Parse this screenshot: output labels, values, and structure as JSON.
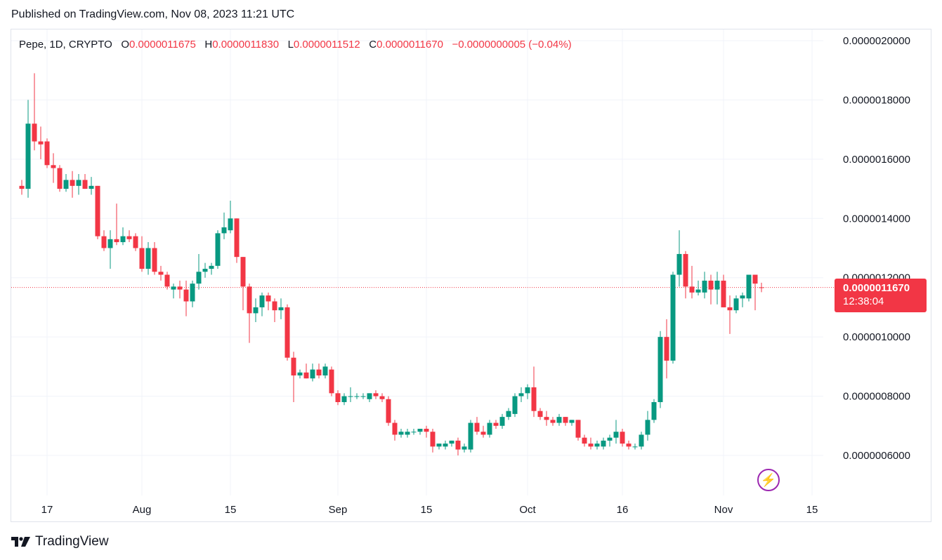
{
  "header": {
    "published": "Published on TradingView.com, Nov 08, 2023 11:21 UTC"
  },
  "legend": {
    "symbol": "Pepe, 1D, CRYPTO",
    "open_label": "O",
    "open": "0.0000011675",
    "high_label": "H",
    "high": "0.0000011830",
    "low_label": "L",
    "low": "0.0000011512",
    "close_label": "C",
    "close": "0.0000011670",
    "change": "−0.0000000005 (−0.04%)"
  },
  "price_tag": {
    "price": "0.0000011670",
    "countdown": "12:38:04"
  },
  "brand": {
    "name": "TradingView"
  },
  "colors": {
    "up": "#089981",
    "down": "#f23645",
    "grid": "#f0f3fa",
    "accent": "#9c27b0"
  },
  "icons": {
    "bolt": "lightning-icon",
    "logo": "tradingview-logo-icon"
  },
  "chart_data": {
    "type": "candlestick",
    "y_scale": "linear",
    "ylim": [
      5.2e-07,
      2.05e-06
    ],
    "y_ticks": [
      "0.0000006000",
      "0.0000008000",
      "0.0000010000",
      "0.0000012000",
      "0.0000014000",
      "0.0000016000",
      "0.0000018000",
      "0.0000020000"
    ],
    "x_ticks": [
      "17",
      "Aug",
      "15",
      "Sep",
      "15",
      "Oct",
      "16",
      "Nov",
      "15"
    ],
    "x_tick_dates": [
      "2023-07-17",
      "2023-08-01",
      "2023-08-15",
      "2023-09-01",
      "2023-09-15",
      "2023-10-01",
      "2023-10-16",
      "2023-11-01",
      "2023-11-15"
    ],
    "grid": true,
    "last_price": 1.167e-06,
    "candles": [
      {
        "date": "2023-07-13",
        "o": 1.51e-06,
        "h": 1.53e-06,
        "l": 1.48e-06,
        "c": 1.5e-06
      },
      {
        "date": "2023-07-14",
        "o": 1.5e-06,
        "h": 1.8e-06,
        "l": 1.47e-06,
        "c": 1.72e-06
      },
      {
        "date": "2023-07-15",
        "o": 1.72e-06,
        "h": 1.89e-06,
        "l": 1.63e-06,
        "c": 1.66e-06
      },
      {
        "date": "2023-07-16",
        "o": 1.66e-06,
        "h": 1.71e-06,
        "l": 1.6e-06,
        "c": 1.65e-06
      },
      {
        "date": "2023-07-17",
        "o": 1.66e-06,
        "h": 1.67e-06,
        "l": 1.57e-06,
        "c": 1.58e-06
      },
      {
        "date": "2023-07-18",
        "o": 1.58e-06,
        "h": 1.62e-06,
        "l": 1.52e-06,
        "c": 1.57e-06
      },
      {
        "date": "2023-07-19",
        "o": 1.57e-06,
        "h": 1.58e-06,
        "l": 1.49e-06,
        "c": 1.5e-06
      },
      {
        "date": "2023-07-20",
        "o": 1.5e-06,
        "h": 1.55e-06,
        "l": 1.49e-06,
        "c": 1.53e-06
      },
      {
        "date": "2023-07-21",
        "o": 1.53e-06,
        "h": 1.56e-06,
        "l": 1.47e-06,
        "c": 1.51e-06
      },
      {
        "date": "2023-07-22",
        "o": 1.51e-06,
        "h": 1.55e-06,
        "l": 1.48e-06,
        "c": 1.53e-06
      },
      {
        "date": "2023-07-23",
        "o": 1.53e-06,
        "h": 1.55e-06,
        "l": 1.5e-06,
        "c": 1.5e-06
      },
      {
        "date": "2023-07-24",
        "o": 1.5e-06,
        "h": 1.54e-06,
        "l": 1.48e-06,
        "c": 1.51e-06
      },
      {
        "date": "2023-07-25",
        "o": 1.51e-06,
        "h": 1.51e-06,
        "l": 1.33e-06,
        "c": 1.34e-06
      },
      {
        "date": "2023-07-26",
        "o": 1.34e-06,
        "h": 1.36e-06,
        "l": 1.29e-06,
        "c": 1.3e-06
      },
      {
        "date": "2023-07-27",
        "o": 1.3e-06,
        "h": 1.36e-06,
        "l": 1.23e-06,
        "c": 1.33e-06
      },
      {
        "date": "2023-07-28",
        "o": 1.33e-06,
        "h": 1.45e-06,
        "l": 1.31e-06,
        "c": 1.32e-06
      },
      {
        "date": "2023-07-29",
        "o": 1.32e-06,
        "h": 1.37e-06,
        "l": 1.31e-06,
        "c": 1.34e-06
      },
      {
        "date": "2023-07-30",
        "o": 1.34e-06,
        "h": 1.36e-06,
        "l": 1.32e-06,
        "c": 1.33e-06
      },
      {
        "date": "2023-07-31",
        "o": 1.34e-06,
        "h": 1.35e-06,
        "l": 1.29e-06,
        "c": 1.3e-06
      },
      {
        "date": "2023-08-01",
        "o": 1.3e-06,
        "h": 1.34e-06,
        "l": 1.22e-06,
        "c": 1.23e-06
      },
      {
        "date": "2023-08-02",
        "o": 1.23e-06,
        "h": 1.32e-06,
        "l": 1.21e-06,
        "c": 1.3e-06
      },
      {
        "date": "2023-08-03",
        "o": 1.3e-06,
        "h": 1.32e-06,
        "l": 1.21e-06,
        "c": 1.22e-06
      },
      {
        "date": "2023-08-04",
        "o": 1.22e-06,
        "h": 1.24e-06,
        "l": 1.19e-06,
        "c": 1.21e-06
      },
      {
        "date": "2023-08-05",
        "o": 1.21e-06,
        "h": 1.22e-06,
        "l": 1.16e-06,
        "c": 1.17e-06
      },
      {
        "date": "2023-08-06",
        "o": 1.16e-06,
        "h": 1.18e-06,
        "l": 1.13e-06,
        "c": 1.17e-06
      },
      {
        "date": "2023-08-07",
        "o": 1.17e-06,
        "h": 1.19e-06,
        "l": 1.13e-06,
        "c": 1.16e-06
      },
      {
        "date": "2023-08-08",
        "o": 1.16e-06,
        "h": 1.19e-06,
        "l": 1.07e-06,
        "c": 1.12e-06
      },
      {
        "date": "2023-08-09",
        "o": 1.12e-06,
        "h": 1.19e-06,
        "l": 1.1e-06,
        "c": 1.18e-06
      },
      {
        "date": "2023-08-10",
        "o": 1.18e-06,
        "h": 1.28e-06,
        "l": 1.16e-06,
        "c": 1.22e-06
      },
      {
        "date": "2023-08-11",
        "o": 1.22e-06,
        "h": 1.25e-06,
        "l": 1.2e-06,
        "c": 1.23e-06
      },
      {
        "date": "2023-08-12",
        "o": 1.23e-06,
        "h": 1.25e-06,
        "l": 1.21e-06,
        "c": 1.24e-06
      },
      {
        "date": "2023-08-13",
        "o": 1.24e-06,
        "h": 1.36e-06,
        "l": 1.23e-06,
        "c": 1.35e-06
      },
      {
        "date": "2023-08-14",
        "o": 1.35e-06,
        "h": 1.42e-06,
        "l": 1.33e-06,
        "c": 1.37e-06
      },
      {
        "date": "2023-08-15",
        "o": 1.36e-06,
        "h": 1.46e-06,
        "l": 1.35e-06,
        "c": 1.4e-06
      },
      {
        "date": "2023-08-16",
        "o": 1.4e-06,
        "h": 1.4e-06,
        "l": 1.25e-06,
        "c": 1.27e-06
      },
      {
        "date": "2023-08-17",
        "o": 1.27e-06,
        "h": 1.27e-06,
        "l": 1.09e-06,
        "c": 1.17e-06
      },
      {
        "date": "2023-08-18",
        "o": 1.17e-06,
        "h": 1.18e-06,
        "l": 9.8e-07,
        "c": 1.08e-06
      },
      {
        "date": "2023-08-19",
        "o": 1.08e-06,
        "h": 1.13e-06,
        "l": 1.05e-06,
        "c": 1.1e-06
      },
      {
        "date": "2023-08-20",
        "o": 1.1e-06,
        "h": 1.15e-06,
        "l": 1.07e-06,
        "c": 1.14e-06
      },
      {
        "date": "2023-08-21",
        "o": 1.14e-06,
        "h": 1.15e-06,
        "l": 1.09e-06,
        "c": 1.12e-06
      },
      {
        "date": "2023-08-22",
        "o": 1.12e-06,
        "h": 1.13e-06,
        "l": 1.05e-06,
        "c": 1.09e-06
      },
      {
        "date": "2023-08-23",
        "o": 1.09e-06,
        "h": 1.13e-06,
        "l": 1.06e-06,
        "c": 1.1e-06
      },
      {
        "date": "2023-08-24",
        "o": 1.1e-06,
        "h": 1.11e-06,
        "l": 9.2e-07,
        "c": 9.3e-07
      },
      {
        "date": "2023-08-25",
        "o": 9.3e-07,
        "h": 9.5e-07,
        "l": 7.8e-07,
        "c": 8.7e-07
      },
      {
        "date": "2023-08-26",
        "o": 8.7e-07,
        "h": 8.9e-07,
        "l": 8.6e-07,
        "c": 8.8e-07
      },
      {
        "date": "2023-08-27",
        "o": 8.8e-07,
        "h": 9.1e-07,
        "l": 8.6e-07,
        "c": 8.6e-07
      },
      {
        "date": "2023-08-28",
        "o": 8.6e-07,
        "h": 9.1e-07,
        "l": 8.5e-07,
        "c": 8.9e-07
      },
      {
        "date": "2023-08-29",
        "o": 8.9e-07,
        "h": 9.1e-07,
        "l": 8.6e-07,
        "c": 8.7e-07
      },
      {
        "date": "2023-08-30",
        "o": 8.7e-07,
        "h": 9.1e-07,
        "l": 8.6e-07,
        "c": 9e-07
      },
      {
        "date": "2023-08-31",
        "o": 8.9e-07,
        "h": 9e-07,
        "l": 8e-07,
        "c": 8.1e-07
      },
      {
        "date": "2023-09-01",
        "o": 8.1e-07,
        "h": 8.2e-07,
        "l": 7.7e-07,
        "c": 7.8e-07
      },
      {
        "date": "2023-09-02",
        "o": 7.8e-07,
        "h": 8.1e-07,
        "l": 7.7e-07,
        "c": 8e-07
      },
      {
        "date": "2023-09-03",
        "o": 8e-07,
        "h": 8.3e-07,
        "l": 7.8e-07,
        "c": 8e-07
      },
      {
        "date": "2023-09-04",
        "o": 8e-07,
        "h": 8.1e-07,
        "l": 7.9e-07,
        "c": 8e-07
      },
      {
        "date": "2023-09-05",
        "o": 8e-07,
        "h": 8.1e-07,
        "l": 7.9e-07,
        "c": 8e-07
      },
      {
        "date": "2023-09-06",
        "o": 7.9e-07,
        "h": 8.1e-07,
        "l": 7.8e-07,
        "c": 8.1e-07
      },
      {
        "date": "2023-09-07",
        "o": 8.1e-07,
        "h": 8.2e-07,
        "l": 7.9e-07,
        "c": 8e-07
      },
      {
        "date": "2023-09-08",
        "o": 8e-07,
        "h": 8.1e-07,
        "l": 7.8e-07,
        "c": 7.9e-07
      },
      {
        "date": "2023-09-09",
        "o": 7.9e-07,
        "h": 8e-07,
        "l": 7e-07,
        "c": 7.1e-07
      },
      {
        "date": "2023-09-10",
        "o": 7.1e-07,
        "h": 7.2e-07,
        "l": 6.5e-07,
        "c": 6.7e-07
      },
      {
        "date": "2023-09-11",
        "o": 6.7e-07,
        "h": 6.9e-07,
        "l": 6.6e-07,
        "c": 6.8e-07
      },
      {
        "date": "2023-09-12",
        "o": 6.7e-07,
        "h": 6.9e-07,
        "l": 6.6e-07,
        "c": 6.8e-07
      },
      {
        "date": "2023-09-13",
        "o": 6.8e-07,
        "h": 6.9e-07,
        "l": 6.7e-07,
        "c": 6.8e-07
      },
      {
        "date": "2023-09-14",
        "o": 6.8e-07,
        "h": 6.9e-07,
        "l": 6.7e-07,
        "c": 6.9e-07
      },
      {
        "date": "2023-09-15",
        "o": 6.9e-07,
        "h": 7e-07,
        "l": 6.6e-07,
        "c": 6.8e-07
      },
      {
        "date": "2023-09-16",
        "o": 6.8e-07,
        "h": 6.9e-07,
        "l": 6.1e-07,
        "c": 6.3e-07
      },
      {
        "date": "2023-09-17",
        "o": 6.3e-07,
        "h": 6.4e-07,
        "l": 6.2e-07,
        "c": 6.4e-07
      },
      {
        "date": "2023-09-18",
        "o": 6.3e-07,
        "h": 6.5e-07,
        "l": 6.2e-07,
        "c": 6.4e-07
      },
      {
        "date": "2023-09-19",
        "o": 6.4e-07,
        "h": 6.5e-07,
        "l": 6.3e-07,
        "c": 6.5e-07
      },
      {
        "date": "2023-09-20",
        "o": 6.5e-07,
        "h": 6.6e-07,
        "l": 6e-07,
        "c": 6.2e-07
      },
      {
        "date": "2023-09-21",
        "o": 6.2e-07,
        "h": 6.4e-07,
        "l": 6.1e-07,
        "c": 6.3e-07
      },
      {
        "date": "2023-09-22",
        "o": 6.2e-07,
        "h": 7.2e-07,
        "l": 6.1e-07,
        "c": 7.1e-07
      },
      {
        "date": "2023-09-23",
        "o": 7.1e-07,
        "h": 7.3e-07,
        "l": 6.7e-07,
        "c": 6.8e-07
      },
      {
        "date": "2023-09-24",
        "o": 6.8e-07,
        "h": 7e-07,
        "l": 6.6e-07,
        "c": 6.7e-07
      },
      {
        "date": "2023-09-25",
        "o": 6.7e-07,
        "h": 7.2e-07,
        "l": 6.6e-07,
        "c": 7.1e-07
      },
      {
        "date": "2023-09-26",
        "o": 7.1e-07,
        "h": 7.2e-07,
        "l": 6.9e-07,
        "c": 7e-07
      },
      {
        "date": "2023-09-27",
        "o": 7e-07,
        "h": 7.4e-07,
        "l": 6.9e-07,
        "c": 7.3e-07
      },
      {
        "date": "2023-09-28",
        "o": 7.3e-07,
        "h": 7.6e-07,
        "l": 7.2e-07,
        "c": 7.5e-07
      },
      {
        "date": "2023-09-29",
        "o": 7.4e-07,
        "h": 8.1e-07,
        "l": 7.3e-07,
        "c": 8e-07
      },
      {
        "date": "2023-09-30",
        "o": 8e-07,
        "h": 8.3e-07,
        "l": 7.8e-07,
        "c": 8.1e-07
      },
      {
        "date": "2023-10-01",
        "o": 8.1e-07,
        "h": 8.4e-07,
        "l": 7.9e-07,
        "c": 8.3e-07
      },
      {
        "date": "2023-10-02",
        "o": 8.3e-07,
        "h": 9e-07,
        "l": 7.3e-07,
        "c": 7.5e-07
      },
      {
        "date": "2023-10-03",
        "o": 7.5e-07,
        "h": 7.6e-07,
        "l": 7.2e-07,
        "c": 7.3e-07
      },
      {
        "date": "2023-10-04",
        "o": 7.3e-07,
        "h": 7.5e-07,
        "l": 7e-07,
        "c": 7.2e-07
      },
      {
        "date": "2023-10-05",
        "o": 7.2e-07,
        "h": 7.3e-07,
        "l": 7e-07,
        "c": 7.1e-07
      },
      {
        "date": "2023-10-06",
        "o": 7.1e-07,
        "h": 7.4e-07,
        "l": 7e-07,
        "c": 7.3e-07
      },
      {
        "date": "2023-10-07",
        "o": 7.3e-07,
        "h": 7.3e-07,
        "l": 7e-07,
        "c": 7.1e-07
      },
      {
        "date": "2023-10-08",
        "o": 7.1e-07,
        "h": 7.2e-07,
        "l": 7e-07,
        "c": 7.2e-07
      },
      {
        "date": "2023-10-09",
        "o": 7.2e-07,
        "h": 7.2e-07,
        "l": 6.5e-07,
        "c": 6.6e-07
      },
      {
        "date": "2023-10-10",
        "o": 6.6e-07,
        "h": 6.7e-07,
        "l": 6.3e-07,
        "c": 6.4e-07
      },
      {
        "date": "2023-10-11",
        "o": 6.4e-07,
        "h": 6.6e-07,
        "l": 6.2e-07,
        "c": 6.3e-07
      },
      {
        "date": "2023-10-12",
        "o": 6.3e-07,
        "h": 6.5e-07,
        "l": 6.2e-07,
        "c": 6.4e-07
      },
      {
        "date": "2023-10-13",
        "o": 6.3e-07,
        "h": 6.6e-07,
        "l": 6.2e-07,
        "c": 6.5e-07
      },
      {
        "date": "2023-10-14",
        "o": 6.5e-07,
        "h": 6.7e-07,
        "l": 6.3e-07,
        "c": 6.6e-07
      },
      {
        "date": "2023-10-15",
        "o": 6.6e-07,
        "h": 7.2e-07,
        "l": 6.4e-07,
        "c": 6.8e-07
      },
      {
        "date": "2023-10-16",
        "o": 6.8e-07,
        "h": 6.9e-07,
        "l": 6.3e-07,
        "c": 6.4e-07
      },
      {
        "date": "2023-10-17",
        "o": 6.4e-07,
        "h": 6.5e-07,
        "l": 6.2e-07,
        "c": 6.3e-07
      },
      {
        "date": "2023-10-18",
        "o": 6.3e-07,
        "h": 6.4e-07,
        "l": 6.2e-07,
        "c": 6.3e-07
      },
      {
        "date": "2023-10-19",
        "o": 6.3e-07,
        "h": 6.8e-07,
        "l": 6.2e-07,
        "c": 6.7e-07
      },
      {
        "date": "2023-10-20",
        "o": 6.7e-07,
        "h": 7.5e-07,
        "l": 6.5e-07,
        "c": 7.2e-07
      },
      {
        "date": "2023-10-21",
        "o": 7.2e-07,
        "h": 7.9e-07,
        "l": 7.1e-07,
        "c": 7.8e-07
      },
      {
        "date": "2023-10-22",
        "o": 7.8e-07,
        "h": 1.02e-06,
        "l": 7.6e-07,
        "c": 1e-06
      },
      {
        "date": "2023-10-23",
        "o": 1e-06,
        "h": 1.06e-06,
        "l": 8.6e-07,
        "c": 9.2e-07
      },
      {
        "date": "2023-10-24",
        "o": 9.2e-07,
        "h": 1.22e-06,
        "l": 9.1e-07,
        "c": 1.21e-06
      },
      {
        "date": "2023-10-25",
        "o": 1.21e-06,
        "h": 1.36e-06,
        "l": 1.17e-06,
        "c": 1.28e-06
      },
      {
        "date": "2023-10-26",
        "o": 1.28e-06,
        "h": 1.29e-06,
        "l": 1.13e-06,
        "c": 1.17e-06
      },
      {
        "date": "2023-10-27",
        "o": 1.17e-06,
        "h": 1.24e-06,
        "l": 1.13e-06,
        "c": 1.15e-06
      },
      {
        "date": "2023-10-28",
        "o": 1.15e-06,
        "h": 1.19e-06,
        "l": 1.14e-06,
        "c": 1.16e-06
      },
      {
        "date": "2023-10-29",
        "o": 1.15e-06,
        "h": 1.22e-06,
        "l": 1.13e-06,
        "c": 1.19e-06
      },
      {
        "date": "2023-10-30",
        "o": 1.19e-06,
        "h": 1.21e-06,
        "l": 1.11e-06,
        "c": 1.16e-06
      },
      {
        "date": "2023-10-31",
        "o": 1.16e-06,
        "h": 1.22e-06,
        "l": 1.11e-06,
        "c": 1.19e-06
      },
      {
        "date": "2023-11-01",
        "o": 1.19e-06,
        "h": 1.21e-06,
        "l": 1.1e-06,
        "c": 1.1e-06
      },
      {
        "date": "2023-11-02",
        "o": 1.1e-06,
        "h": 1.14e-06,
        "l": 1.01e-06,
        "c": 1.09e-06
      },
      {
        "date": "2023-11-03",
        "o": 1.09e-06,
        "h": 1.14e-06,
        "l": 1.08e-06,
        "c": 1.13e-06
      },
      {
        "date": "2023-11-04",
        "o": 1.13e-06,
        "h": 1.15e-06,
        "l": 1.1e-06,
        "c": 1.14e-06
      },
      {
        "date": "2023-11-05",
        "o": 1.13e-06,
        "h": 1.21e-06,
        "l": 1.12e-06,
        "c": 1.21e-06
      },
      {
        "date": "2023-11-06",
        "o": 1.21e-06,
        "h": 1.21e-06,
        "l": 1.09e-06,
        "c": 1.18e-06
      },
      {
        "date": "2023-11-07",
        "o": 1.1675e-06,
        "h": 1.183e-06,
        "l": 1.1512e-06,
        "c": 1.167e-06
      }
    ]
  }
}
